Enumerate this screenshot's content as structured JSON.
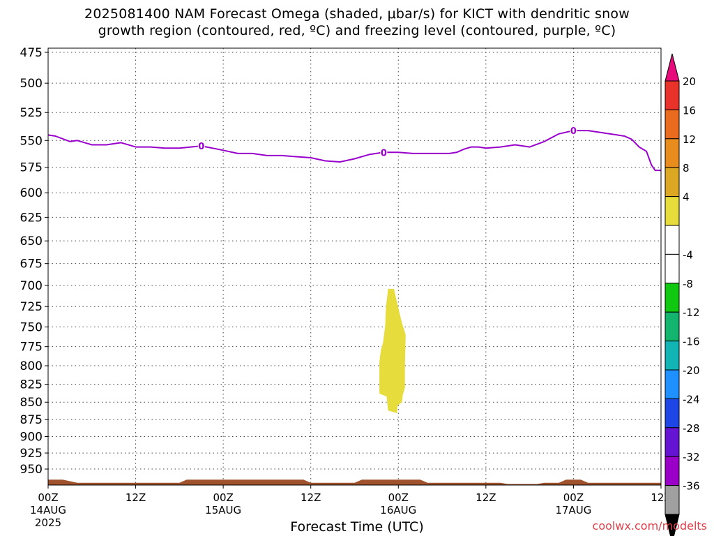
{
  "title_line1": "2025081400 NAM Forecast Omega (shaded, μbar/s) for KICT with dendritic snow",
  "title_line2": "growth region (contoured, red, ºC) and freezing level (contoured, purple, ºC)",
  "xlabel": "Forecast Time (UTC)",
  "credit": "coolwx.com/modelts",
  "colors": {
    "freezing_line": "#9900cc",
    "omega_shade": "#e6dc3c",
    "terrain": "#a0522d"
  },
  "chart_data": {
    "type": "time-height cross-section",
    "y_axis": {
      "ticks": [
        475,
        500,
        525,
        550,
        575,
        600,
        625,
        650,
        675,
        700,
        725,
        750,
        775,
        800,
        825,
        850,
        875,
        900,
        925,
        950
      ],
      "range": [
        475,
        970
      ],
      "scale": "log-pressure (hPa)"
    },
    "x_axis": {
      "range_hours": [
        0,
        84
      ],
      "ticks": [
        {
          "h": 0,
          "label": "00Z",
          "sub": "14AUG",
          "sub2": "2025"
        },
        {
          "h": 12,
          "label": "12Z",
          "sub": "",
          "sub2": ""
        },
        {
          "h": 24,
          "label": "00Z",
          "sub": "15AUG",
          "sub2": ""
        },
        {
          "h": 36,
          "label": "12Z",
          "sub": "",
          "sub2": ""
        },
        {
          "h": 48,
          "label": "00Z",
          "sub": "16AUG",
          "sub2": ""
        },
        {
          "h": 60,
          "label": "12Z",
          "sub": "",
          "sub2": ""
        },
        {
          "h": 72,
          "label": "00Z",
          "sub": "17AUG",
          "sub2": ""
        },
        {
          "h": 84,
          "label": "12Z",
          "sub": "",
          "sub2": ""
        }
      ]
    },
    "freezing_level": {
      "label": "0",
      "label_hours": [
        21,
        46,
        72
      ],
      "points": [
        [
          0,
          545
        ],
        [
          1,
          546
        ],
        [
          3,
          551
        ],
        [
          4,
          550
        ],
        [
          6,
          554
        ],
        [
          8,
          554
        ],
        [
          10,
          552
        ],
        [
          12,
          556
        ],
        [
          14,
          556
        ],
        [
          16,
          557
        ],
        [
          18,
          557
        ],
        [
          21,
          555
        ],
        [
          24,
          559
        ],
        [
          26,
          562
        ],
        [
          28,
          562
        ],
        [
          30,
          564
        ],
        [
          32,
          564
        ],
        [
          34,
          565
        ],
        [
          36,
          566
        ],
        [
          38,
          569
        ],
        [
          40,
          570
        ],
        [
          42,
          567
        ],
        [
          44,
          563
        ],
        [
          46,
          561
        ],
        [
          48,
          561
        ],
        [
          50,
          562
        ],
        [
          53,
          562
        ],
        [
          55,
          562
        ],
        [
          56,
          561
        ],
        [
          57,
          558
        ],
        [
          58,
          556
        ],
        [
          59,
          556
        ],
        [
          60,
          557
        ],
        [
          62,
          556
        ],
        [
          64,
          554
        ],
        [
          66,
          556
        ],
        [
          68,
          551
        ],
        [
          70,
          544
        ],
        [
          72,
          541
        ],
        [
          74,
          541
        ],
        [
          76,
          543
        ],
        [
          78,
          545
        ],
        [
          79,
          546
        ],
        [
          80,
          549
        ],
        [
          81,
          556
        ],
        [
          82,
          560
        ],
        [
          82.7,
          573
        ],
        [
          83.2,
          578
        ],
        [
          84,
          578
        ]
      ]
    },
    "omega_area": {
      "interval_label": "4 to 8",
      "polygon": [
        [
          46.6,
          704
        ],
        [
          47.4,
          704
        ],
        [
          48,
          727
        ],
        [
          48.5,
          745
        ],
        [
          49,
          760
        ],
        [
          48.9,
          800
        ],
        [
          48.9,
          830
        ],
        [
          48.6,
          840
        ],
        [
          48.5,
          850
        ],
        [
          47.9,
          855
        ],
        [
          47.8,
          866
        ],
        [
          47.3,
          864
        ],
        [
          46.6,
          862
        ],
        [
          46.5,
          853
        ],
        [
          46.4,
          842
        ],
        [
          45.4,
          838
        ],
        [
          45.4,
          795
        ],
        [
          45.6,
          780
        ],
        [
          45.9,
          770
        ],
        [
          46.2,
          748
        ],
        [
          46.3,
          726
        ],
        [
          46.6,
          704
        ]
      ]
    },
    "terrain_top": [
      [
        0,
        967
      ],
      [
        2,
        967
      ],
      [
        4,
        972
      ],
      [
        18,
        972
      ],
      [
        19,
        967
      ],
      [
        35,
        967
      ],
      [
        36,
        972
      ],
      [
        42,
        972
      ],
      [
        43,
        967
      ],
      [
        51,
        967
      ],
      [
        52,
        972
      ],
      [
        62,
        972
      ],
      [
        63,
        974
      ],
      [
        67,
        974
      ],
      [
        68,
        972
      ],
      [
        70,
        972
      ],
      [
        71,
        967
      ],
      [
        73,
        967
      ],
      [
        74,
        972
      ],
      [
        84,
        972
      ]
    ],
    "colorbar": {
      "segments": [
        {
          "color": "#e60a7a"
        },
        {
          "color": "#e8322a"
        },
        {
          "color": "#ea6b1e"
        },
        {
          "color": "#e98c1e"
        },
        {
          "color": "#dca824"
        },
        {
          "color": "#e6dc3c"
        },
        {
          "color": "#ffffff"
        },
        {
          "color": "#ffffff"
        },
        {
          "color": "#10c810"
        },
        {
          "color": "#12b46e"
        },
        {
          "color": "#12b4b4"
        },
        {
          "color": "#1e90ff"
        },
        {
          "color": "#1e46e6"
        },
        {
          "color": "#6414d2"
        },
        {
          "color": "#9b00c8"
        },
        {
          "color": "#a0a0a0"
        },
        {
          "color": "#000000"
        }
      ],
      "labels": [
        "20",
        "16",
        "12",
        "8",
        "4",
        "-4",
        "-8",
        "-12",
        "-16",
        "-20",
        "-24",
        "-28",
        "-32",
        "-36"
      ]
    }
  }
}
